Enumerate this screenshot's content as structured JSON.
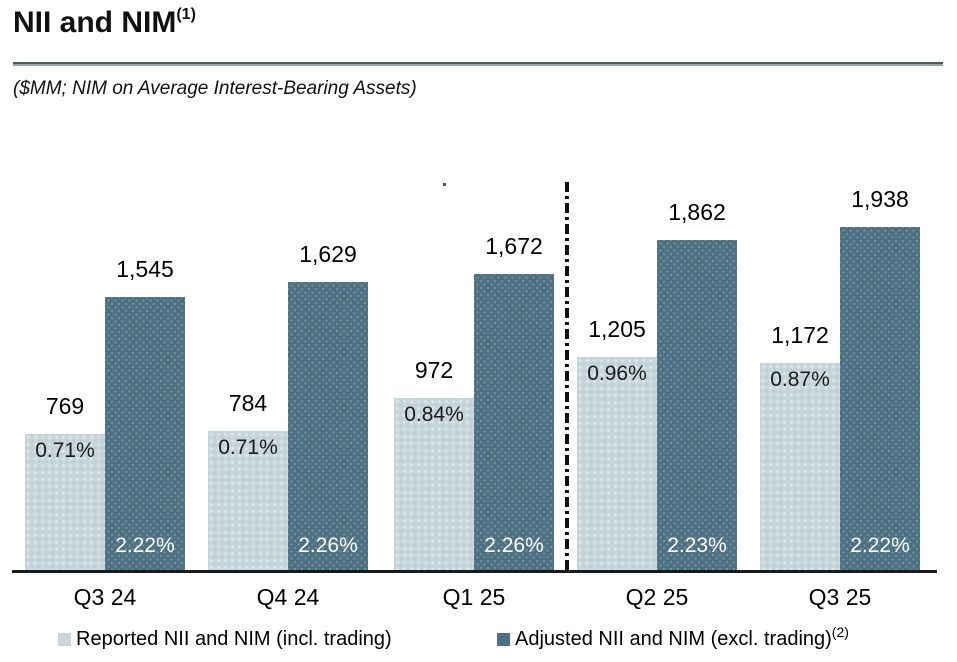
{
  "header": {
    "title": "NII and NIM",
    "title_superscript": "(1)",
    "subtitle": "($MM; NIM on Average Interest-Bearing Assets)"
  },
  "chart_data": {
    "type": "bar",
    "categories": [
      "Q3 24",
      "Q4 24",
      "Q1 25",
      "Q2 25",
      "Q3 25"
    ],
    "series": [
      {
        "name": "Reported NII and NIM (incl. trading)",
        "values": [
          769,
          784,
          972,
          1205,
          1172
        ],
        "value_labels": [
          "769",
          "784",
          "972",
          "1,205",
          "1,172"
        ],
        "nim_labels": [
          "0.71%",
          "0.71%",
          "0.84%",
          "0.96%",
          "0.87%"
        ],
        "color": "#c8d6dc"
      },
      {
        "name": "Adjusted NII and NIM (excl. trading)",
        "values": [
          1545,
          1629,
          1672,
          1862,
          1938
        ],
        "value_labels": [
          "1,545",
          "1,629",
          "1,672",
          "1,862",
          "1,938"
        ],
        "nim_labels": [
          "2.22%",
          "2.26%",
          "2.26%",
          "2.23%",
          "2.22%"
        ],
        "color": "#4c7086"
      }
    ],
    "title": "NII and NIM",
    "subtitle": "($MM; NIM on Average Interest-Bearing Assets)",
    "xlabel": "",
    "ylabel": "",
    "ylim": [
      0,
      2100
    ],
    "grid": false,
    "legend_position": "bottom",
    "separator_after_category": "Q1 25"
  },
  "legend": {
    "items": [
      {
        "label": "Reported NII and NIM (incl. trading)",
        "superscript": "",
        "color": "#c8d6dc"
      },
      {
        "label": "Adjusted NII and NIM (excl. trading)",
        "superscript": "(2)",
        "color": "#4c7086"
      }
    ]
  }
}
